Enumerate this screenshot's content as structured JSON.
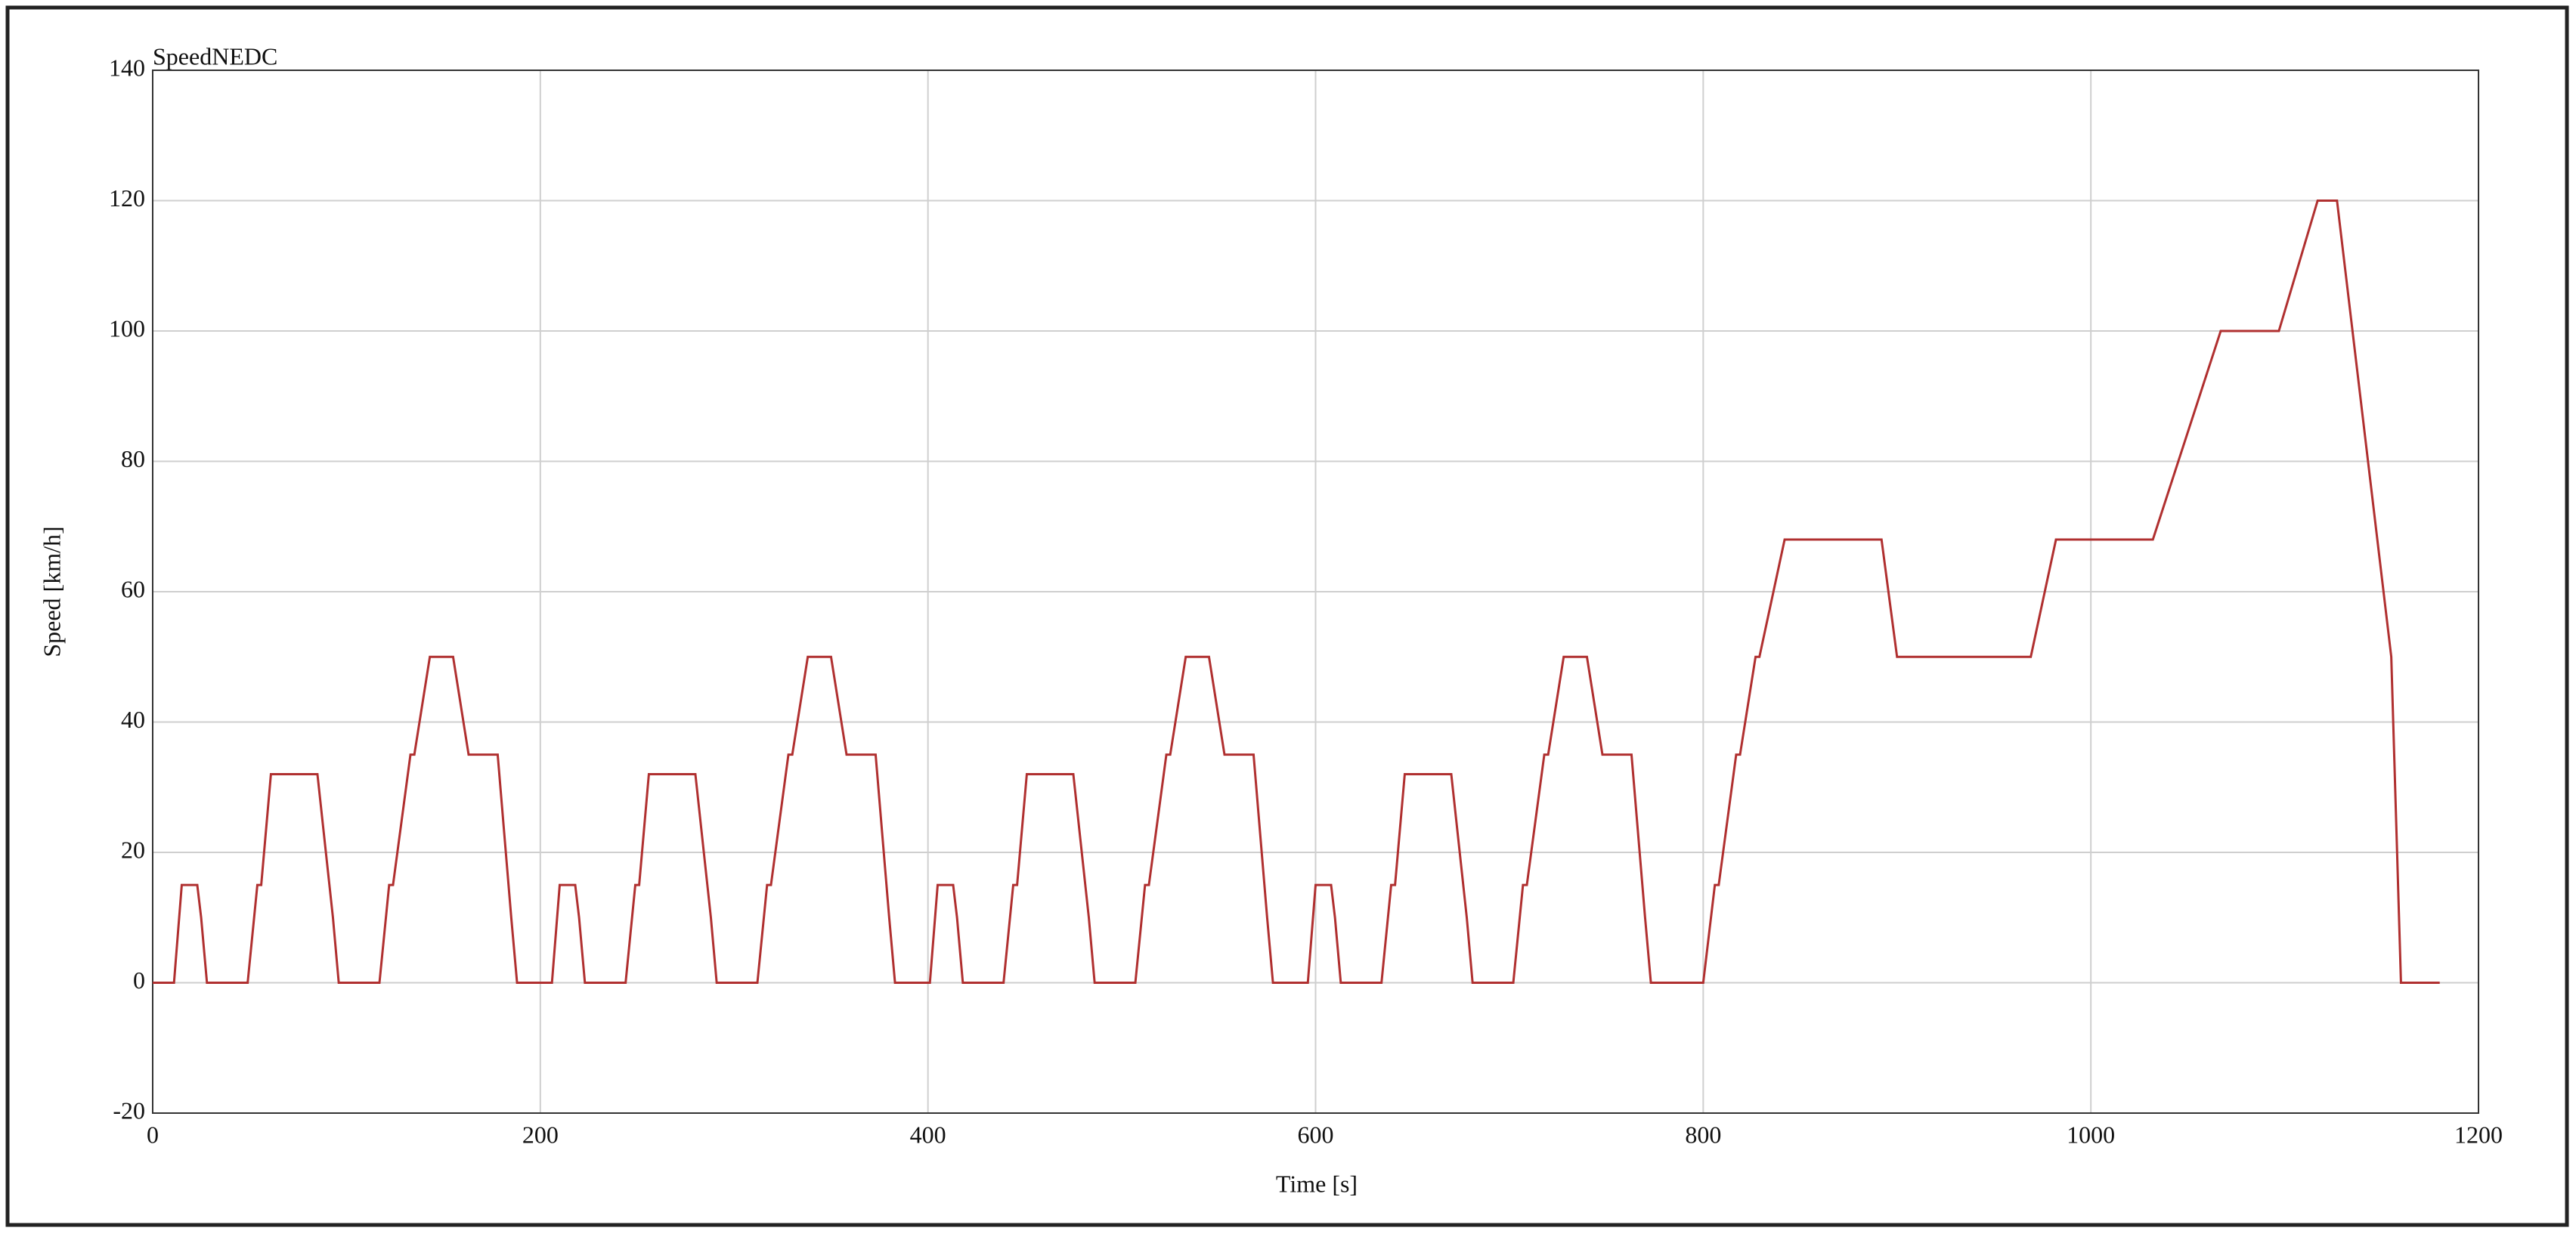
{
  "chart_data": {
    "type": "line",
    "title": "SpeedNEDC",
    "x_label": "Time [s]",
    "y_label": "Speed [km/h]",
    "x": [
      0,
      11,
      15,
      23,
      25,
      28,
      49,
      54,
      56,
      61,
      85,
      93,
      96,
      117,
      122,
      124,
      133,
      135,
      143,
      155,
      163,
      176,
      178,
      185,
      188,
      195,
      206,
      210,
      218,
      220,
      223,
      244,
      249,
      251,
      256,
      280,
      288,
      291,
      312,
      317,
      319,
      328,
      330,
      338,
      350,
      358,
      371,
      373,
      380,
      383,
      390,
      401,
      405,
      413,
      415,
      418,
      439,
      444,
      446,
      451,
      475,
      483,
      486,
      507,
      512,
      514,
      523,
      525,
      533,
      545,
      553,
      566,
      568,
      575,
      578,
      585,
      596,
      600,
      608,
      610,
      613,
      634,
      639,
      641,
      646,
      670,
      678,
      681,
      702,
      707,
      709,
      718,
      720,
      728,
      740,
      748,
      761,
      763,
      770,
      773,
      780,
      800,
      806,
      808,
      817,
      819,
      827,
      829,
      842,
      892,
      900,
      969,
      982,
      1032,
      1067,
      1097,
      1117,
      1127,
      1143,
      1155,
      1160,
      1180
    ],
    "series": [
      {
        "name": "SpeedNEDC",
        "color": "#b03030",
        "values": [
          0,
          0,
          15,
          15,
          10,
          0,
          0,
          15,
          15,
          32,
          32,
          10,
          0,
          0,
          15,
          15,
          35,
          35,
          50,
          50,
          35,
          35,
          35,
          10,
          0,
          0,
          0,
          15,
          15,
          10,
          0,
          0,
          15,
          15,
          32,
          32,
          10,
          0,
          0,
          15,
          15,
          35,
          35,
          50,
          50,
          35,
          35,
          35,
          10,
          0,
          0,
          0,
          15,
          15,
          10,
          0,
          0,
          15,
          15,
          32,
          32,
          10,
          0,
          0,
          15,
          15,
          35,
          35,
          50,
          50,
          35,
          35,
          35,
          10,
          0,
          0,
          0,
          15,
          15,
          10,
          0,
          0,
          15,
          15,
          32,
          32,
          10,
          0,
          0,
          15,
          15,
          35,
          35,
          50,
          50,
          35,
          35,
          35,
          10,
          0,
          0,
          0,
          15,
          15,
          35,
          35,
          50,
          50,
          68,
          68,
          50,
          50,
          68,
          68,
          100,
          100,
          120,
          120,
          80,
          50,
          0,
          0
        ]
      }
    ],
    "xlim": [
      0,
      1200
    ],
    "xticks": [
      0,
      200,
      400,
      600,
      800,
      1000,
      1200
    ],
    "ylim": [
      -20,
      140
    ],
    "yticks": [
      -20,
      0,
      20,
      40,
      60,
      80,
      100,
      120,
      140
    ],
    "grid": true
  }
}
